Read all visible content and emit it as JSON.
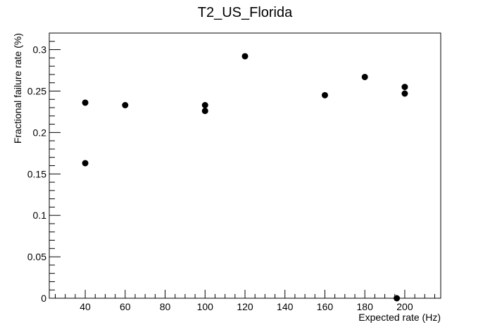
{
  "chart_data": {
    "type": "scatter",
    "title": "T2_US_Florida",
    "xlabel": "Expected rate (Hz)",
    "ylabel": "Fractional failure rate (%)",
    "xlim": [
      22,
      218
    ],
    "ylim": [
      0,
      0.32
    ],
    "xticks": [
      40,
      60,
      80,
      100,
      120,
      140,
      160,
      180,
      200
    ],
    "xtick_labels": [
      "40",
      "60",
      "80",
      "100",
      "120",
      "140",
      "160",
      "180",
      "200"
    ],
    "yticks": [
      0,
      0.05,
      0.1,
      0.15,
      0.2,
      0.25,
      0.3
    ],
    "ytick_labels": [
      "0",
      "0.05",
      "0.1",
      "0.15",
      "0.2",
      "0.25",
      "0.3"
    ],
    "grid": false,
    "marker_color": "#000000",
    "points": [
      {
        "x": 40,
        "y": 0.236
      },
      {
        "x": 40,
        "y": 0.163
      },
      {
        "x": 60,
        "y": 0.233
      },
      {
        "x": 100,
        "y": 0.233
      },
      {
        "x": 100,
        "y": 0.226
      },
      {
        "x": 120,
        "y": 0.292
      },
      {
        "x": 160,
        "y": 0.245
      },
      {
        "x": 180,
        "y": 0.267
      },
      {
        "x": 200,
        "y": 0.255
      },
      {
        "x": 200,
        "y": 0.247
      },
      {
        "x": 196,
        "y": 0.0
      }
    ]
  }
}
